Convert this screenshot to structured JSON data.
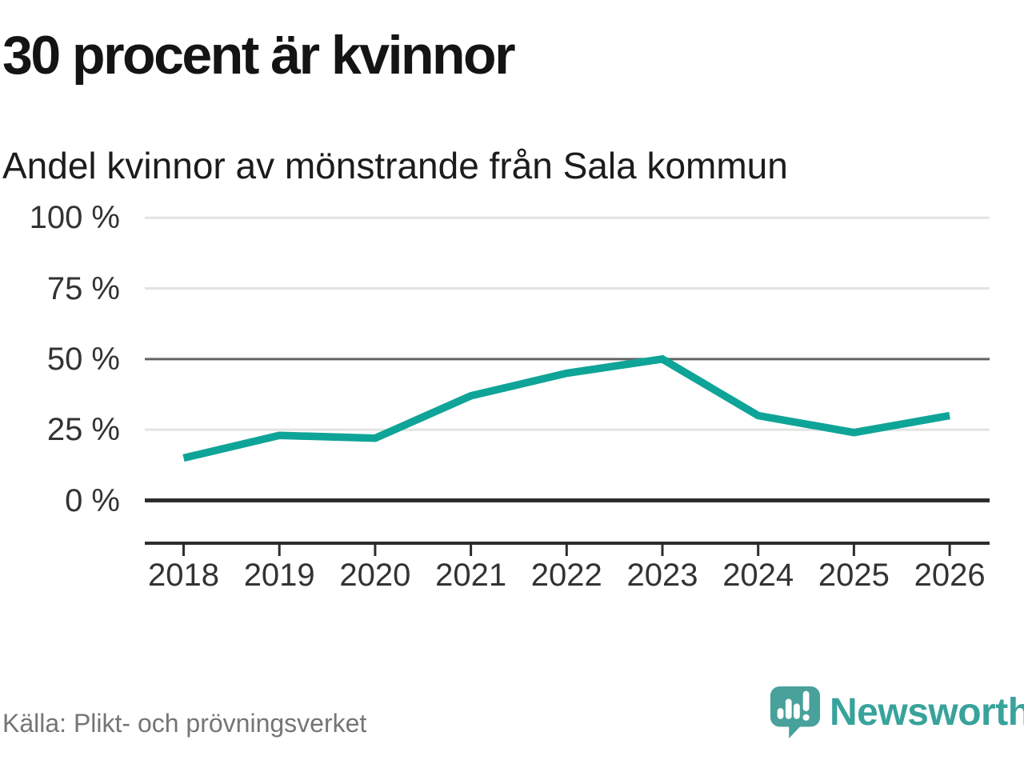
{
  "header": {
    "title": "30 procent är kvinnor",
    "subtitle": "Andel kvinnor av mönstrande från Sala kommun"
  },
  "footer": {
    "source": "Källa: Plikt- och prövningsverket",
    "brand": "Newsworthy"
  },
  "colors": {
    "line": "#0fa498",
    "logo_mark": "#48a19b",
    "logo_text": "#38a39b",
    "grid_light": "#e3e3e3",
    "grid_mid": "#646464",
    "grid_dark": "#2d2d2d"
  },
  "chart_data": {
    "type": "line",
    "title": "30 procent är kvinnor",
    "subtitle": "Andel kvinnor av mönstrande från Sala kommun",
    "x": [
      "2018",
      "2019",
      "2020",
      "2021",
      "2022",
      "2023",
      "2024",
      "2025",
      "2026"
    ],
    "series": [
      {
        "name": "Andel kvinnor av mönstrande från Sala kommun",
        "values": [
          15,
          23,
          22,
          37,
          45,
          50,
          30,
          24,
          30
        ]
      }
    ],
    "unit": "%",
    "xlabel": "",
    "ylabel": "",
    "ylim": [
      0,
      100
    ],
    "yticks": [
      0,
      25,
      50,
      75,
      100
    ],
    "ytick_labels": [
      "0 %",
      "25 %",
      "50 %",
      "75 %",
      "100 %"
    ],
    "grid": "horizontal",
    "legend": "none"
  }
}
